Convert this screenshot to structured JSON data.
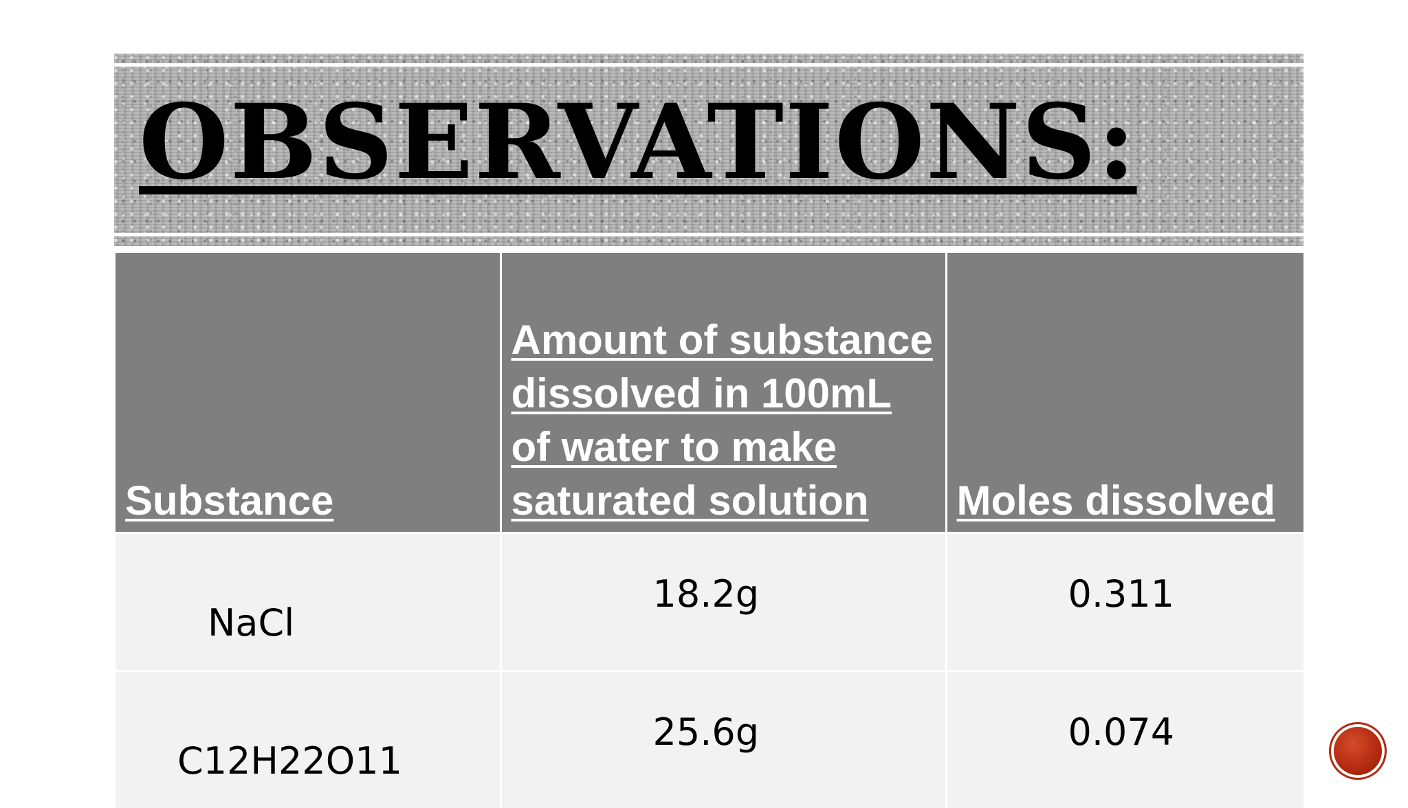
{
  "slide": {
    "title": "OBSERVATIONS:"
  },
  "table": {
    "headers": [
      "Substance",
      "Amount of substance dissolved in 100mL of water to make saturated solution",
      "Moles dissolved"
    ],
    "rows": [
      {
        "substance": "NaCl",
        "amount": "18.2g",
        "moles": "0.311"
      },
      {
        "substance": "C12H22O11",
        "amount": "25.6g",
        "moles": "0.074"
      }
    ]
  },
  "colors": {
    "header_bg": "#7f7f7f",
    "cell_bg": "#f2f2f2",
    "record_button": "#b22a10"
  },
  "icons": {
    "record_button": "record-icon"
  }
}
